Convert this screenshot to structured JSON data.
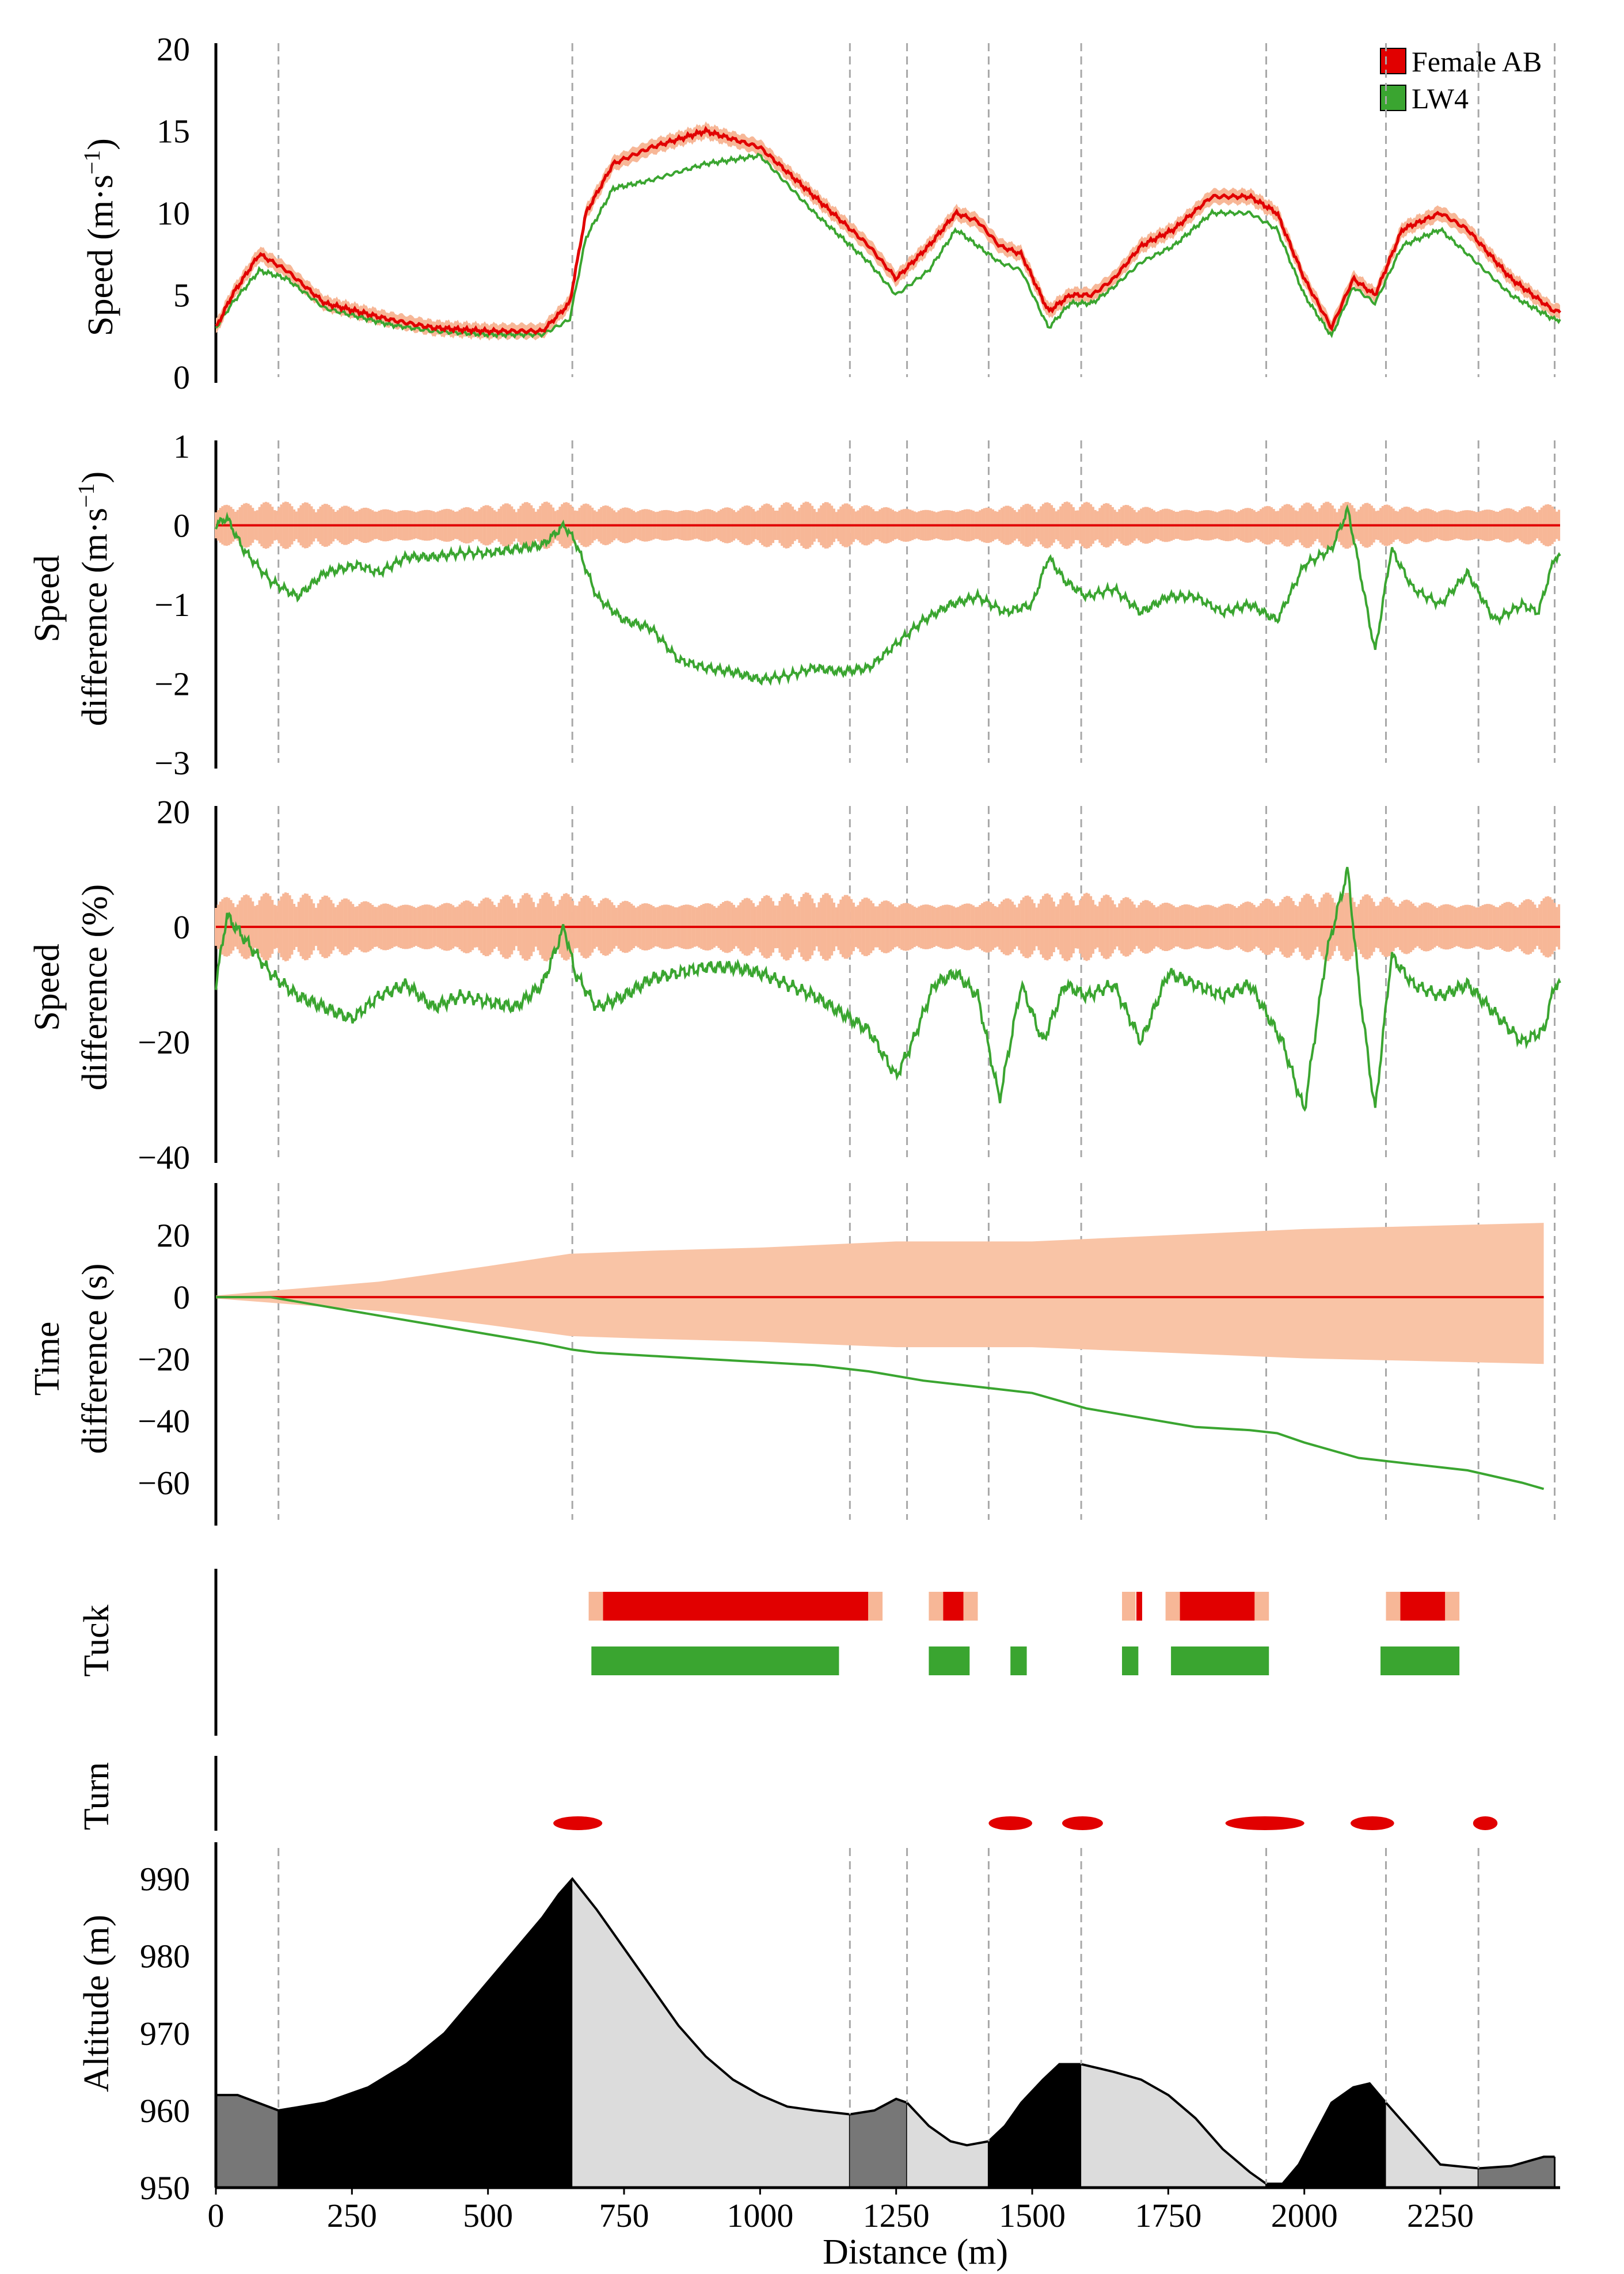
{
  "figure": {
    "xlabel": "Distance (m)",
    "xticks": [
      "0",
      "250",
      "500",
      "750",
      "1000",
      "1250",
      "1500",
      "1750",
      "2000",
      "2250"
    ],
    "legend": [
      {
        "label": "Female AB",
        "color": "#e10000"
      },
      {
        "label": "LW4",
        "color": "#3aa530"
      }
    ],
    "section_boundaries_m": [
      115,
      655,
      1165,
      1270,
      1420,
      1590,
      1930,
      2150,
      2320,
      2460
    ]
  },
  "chart_data": [
    {
      "type": "line",
      "id": "speed",
      "ylabel_lines": [
        "Speed (m·s",
        "−1",
        ")"
      ],
      "yticks": [
        "0",
        "5",
        "10",
        "15",
        "20"
      ],
      "ylim": [
        0,
        20
      ],
      "xlim": [
        0,
        2470
      ],
      "series": [
        {
          "name": "Female AB",
          "color": "#e10000",
          "band_color": "#f7b797",
          "x": [
            0,
            30,
            80,
            130,
            200,
            260,
            320,
            400,
            500,
            600,
            650,
            680,
            730,
            800,
            900,
            1000,
            1100,
            1200,
            1250,
            1310,
            1360,
            1400,
            1440,
            1480,
            1530,
            1570,
            1610,
            1650,
            1700,
            1760,
            1830,
            1900,
            1950,
            2000,
            2050,
            2090,
            2130,
            2180,
            2250,
            2300,
            2380,
            2460
          ],
          "y": [
            3,
            5,
            7.5,
            6.5,
            4.5,
            4,
            3.5,
            3,
            2.8,
            2.8,
            4.5,
            10,
            13,
            14,
            15,
            14,
            11,
            8,
            6,
            8,
            10,
            9.5,
            8,
            7.5,
            4,
            5,
            5,
            6,
            8,
            9,
            11,
            11,
            10,
            6,
            3,
            6,
            5,
            9,
            10,
            9,
            6,
            4
          ]
        },
        {
          "name": "LW4",
          "color": "#3aa530",
          "x": [
            0,
            30,
            80,
            130,
            200,
            260,
            320,
            400,
            500,
            600,
            650,
            680,
            730,
            800,
            900,
            1000,
            1100,
            1200,
            1250,
            1310,
            1360,
            1400,
            1440,
            1480,
            1530,
            1570,
            1610,
            1650,
            1700,
            1760,
            1830,
            1900,
            1950,
            2000,
            2050,
            2090,
            2130,
            2180,
            2250,
            2300,
            2380,
            2460
          ],
          "y": [
            3,
            4.5,
            6.5,
            6,
            4.2,
            3.7,
            3.2,
            2.8,
            2.6,
            2.6,
            3.5,
            8.5,
            11.5,
            12,
            13,
            13.5,
            10,
            7,
            5,
            6.5,
            9,
            8,
            7,
            6.5,
            3,
            4.5,
            4.5,
            5.5,
            7,
            8,
            10,
            10,
            9,
            5,
            2.5,
            5.5,
            4.5,
            8,
            9,
            7.5,
            5,
            3.5
          ]
        }
      ]
    },
    {
      "type": "line",
      "id": "speed_diff",
      "ylabel_lines": [
        "Speed",
        "difference (m·s",
        "−1",
        ")"
      ],
      "yticks": [
        "1",
        "0",
        "−1",
        "−2",
        "−3"
      ],
      "ylim": [
        -3,
        1
      ],
      "xlim": [
        0,
        2470
      ],
      "series": [
        {
          "name": "Female AB",
          "color": "#e10000",
          "band_halfwidth": 0.3,
          "x": [
            0,
            2470
          ],
          "y": [
            0,
            0
          ]
        },
        {
          "name": "LW4",
          "color": "#3aa530",
          "x": [
            0,
            20,
            50,
            100,
            150,
            200,
            260,
            300,
            350,
            400,
            450,
            500,
            550,
            600,
            640,
            660,
            700,
            750,
            800,
            850,
            900,
            950,
            1000,
            1050,
            1100,
            1150,
            1200,
            1250,
            1300,
            1350,
            1400,
            1450,
            1500,
            1530,
            1560,
            1600,
            1650,
            1700,
            1750,
            1800,
            1850,
            1900,
            1950,
            2000,
            2050,
            2080,
            2100,
            2130,
            2160,
            2200,
            2250,
            2300,
            2350,
            2400,
            2430,
            2460
          ],
          "y": [
            0,
            0.1,
            -0.3,
            -0.7,
            -0.9,
            -0.6,
            -0.5,
            -0.6,
            -0.4,
            -0.4,
            -0.35,
            -0.35,
            -0.3,
            -0.25,
            0,
            -0.2,
            -0.9,
            -1.2,
            -1.3,
            -1.7,
            -1.8,
            -1.85,
            -1.95,
            -1.9,
            -1.8,
            -1.85,
            -1.8,
            -1.5,
            -1.2,
            -1.0,
            -0.9,
            -1.1,
            -1.0,
            -0.4,
            -0.7,
            -0.9,
            -0.8,
            -1.1,
            -0.9,
            -0.9,
            -1.1,
            -1.0,
            -1.2,
            -0.5,
            -0.3,
            0.2,
            -0.5,
            -1.6,
            -0.3,
            -0.8,
            -1.0,
            -0.6,
            -1.2,
            -1.0,
            -1.1,
            -0.4
          ]
        }
      ]
    },
    {
      "type": "line",
      "id": "speed_diff_pct",
      "ylabel_lines": [
        "Speed",
        "difference (%)"
      ],
      "yticks": [
        "20",
        "0",
        "−20",
        "−40"
      ],
      "ylim": [
        -40,
        20
      ],
      "xlim": [
        0,
        2470
      ],
      "series": [
        {
          "name": "Female AB",
          "color": "#e10000",
          "band_halfwidth": 6,
          "x": [
            0,
            2470
          ],
          "y": [
            0,
            0
          ]
        },
        {
          "name": "LW4",
          "color": "#3aa530",
          "x": [
            0,
            20,
            60,
            100,
            150,
            200,
            250,
            300,
            350,
            400,
            450,
            500,
            550,
            600,
            640,
            660,
            700,
            750,
            800,
            850,
            900,
            950,
            1000,
            1050,
            1100,
            1150,
            1200,
            1250,
            1280,
            1320,
            1360,
            1400,
            1440,
            1480,
            1520,
            1560,
            1600,
            1650,
            1700,
            1750,
            1800,
            1850,
            1900,
            1960,
            2000,
            2040,
            2080,
            2100,
            2130,
            2160,
            2200,
            2250,
            2300,
            2350,
            2400,
            2440,
            2460
          ],
          "y": [
            -10,
            2,
            -3,
            -8,
            -12,
            -14,
            -16,
            -12,
            -10,
            -14,
            -12,
            -13,
            -14,
            -10,
            0,
            -8,
            -14,
            -12,
            -9,
            -8,
            -7,
            -7,
            -8,
            -10,
            -12,
            -15,
            -18,
            -26,
            -20,
            -10,
            -8,
            -12,
            -30,
            -10,
            -20,
            -10,
            -12,
            -10,
            -20,
            -8,
            -10,
            -12,
            -10,
            -20,
            -32,
            -5,
            10,
            -10,
            -32,
            -5,
            -10,
            -12,
            -10,
            -15,
            -20,
            -18,
            -10
          ]
        }
      ]
    },
    {
      "type": "line",
      "id": "time_diff",
      "ylabel_lines": [
        "Time",
        "difference (s)"
      ],
      "yticks": [
        "20",
        "0",
        "−20",
        "−40",
        "−60"
      ],
      "ylim": [
        -72,
        35
      ],
      "xlim": [
        0,
        2470
      ],
      "series": [
        {
          "name": "Female AB",
          "color": "#e10000",
          "band_upper": [
            0.5,
            2,
            5,
            10,
            14,
            15,
            16,
            18,
            18,
            20,
            22,
            24
          ],
          "band_x": [
            0,
            100,
            300,
            500,
            650,
            800,
            1000,
            1250,
            1500,
            1750,
            2000,
            2440
          ],
          "x": [
            0,
            2440
          ],
          "y": [
            0,
            0
          ]
        },
        {
          "name": "LW4",
          "color": "#3aa530",
          "x": [
            0,
            100,
            200,
            300,
            400,
            500,
            600,
            655,
            700,
            800,
            900,
            1000,
            1100,
            1200,
            1300,
            1400,
            1500,
            1600,
            1700,
            1800,
            1900,
            1950,
            2000,
            2100,
            2200,
            2300,
            2400,
            2440
          ],
          "y": [
            0,
            0,
            -3,
            -6,
            -9,
            -12,
            -15,
            -17,
            -18,
            -19,
            -20,
            -21,
            -22,
            -24,
            -27,
            -29,
            -31,
            -36,
            -39,
            -42,
            -43,
            -44,
            -47,
            -52,
            -54,
            -56,
            -60,
            -62
          ]
        }
      ]
    },
    {
      "type": "bar",
      "id": "tuck",
      "ylabel": "Tuck",
      "series": [
        {
          "name": "Female AB",
          "color": "#e10000",
          "edge_color": "#f7b797",
          "segments": [
            [
              685,
              1225
            ],
            [
              1310,
              1400
            ],
            [
              1665,
              1690
            ],
            [
              1745,
              1935
            ],
            [
              2150,
              2285
            ]
          ]
        },
        {
          "name": "LW4",
          "color": "#3aa530",
          "segments": [
            [
              690,
              1145
            ],
            [
              1310,
              1385
            ],
            [
              1460,
              1490
            ],
            [
              1665,
              1695
            ],
            [
              1755,
              1935
            ],
            [
              2140,
              2285
            ]
          ]
        }
      ]
    },
    {
      "type": "scatter",
      "id": "turn",
      "ylabel": "Turn",
      "series": [
        {
          "name": "Turns",
          "color": "#e10000",
          "segments": [
            [
              620,
              710
            ],
            [
              1420,
              1500
            ],
            [
              1555,
              1630
            ],
            [
              1855,
              2000
            ],
            [
              2085,
              2165
            ],
            [
              2310,
              2355
            ]
          ]
        }
      ]
    },
    {
      "type": "area",
      "id": "altitude",
      "ylabel": "Altitude (m)",
      "yticks": [
        "950",
        "960",
        "970",
        "980",
        "990"
      ],
      "ylim": [
        950,
        994
      ],
      "xlim": [
        0,
        2470
      ],
      "x": [
        0,
        40,
        115,
        200,
        280,
        350,
        420,
        480,
        540,
        600,
        630,
        655,
        700,
        750,
        800,
        850,
        900,
        950,
        1000,
        1050,
        1100,
        1165,
        1210,
        1250,
        1270,
        1310,
        1350,
        1380,
        1420,
        1450,
        1480,
        1520,
        1550,
        1590,
        1650,
        1700,
        1750,
        1800,
        1850,
        1900,
        1930,
        1960,
        1990,
        2020,
        2050,
        2090,
        2120,
        2150,
        2200,
        2250,
        2320,
        2380,
        2440,
        2460
      ],
      "y": [
        962,
        962,
        960,
        961,
        963,
        966,
        970,
        975,
        980,
        985,
        988,
        990,
        986,
        981,
        976,
        971,
        967,
        964,
        962,
        960.5,
        960,
        959.5,
        960,
        961.5,
        961,
        958,
        956,
        955.5,
        956,
        958,
        961,
        964,
        966,
        966,
        965,
        964,
        962,
        959,
        955,
        952,
        950.5,
        950.5,
        953,
        957,
        961,
        963,
        963.5,
        961,
        957,
        953,
        952.5,
        952.8,
        954,
        954
      ],
      "segment_colors": [
        {
          "from": 0,
          "to": 115,
          "color": "#777777"
        },
        {
          "from": 115,
          "to": 655,
          "color": "#000000"
        },
        {
          "from": 655,
          "to": 1165,
          "color": "#dcdcdc"
        },
        {
          "from": 1165,
          "to": 1270,
          "color": "#777777"
        },
        {
          "from": 1270,
          "to": 1420,
          "color": "#dcdcdc"
        },
        {
          "from": 1420,
          "to": 1590,
          "color": "#000000"
        },
        {
          "from": 1590,
          "to": 1930,
          "color": "#dcdcdc"
        },
        {
          "from": 1930,
          "to": 2150,
          "color": "#000000"
        },
        {
          "from": 2150,
          "to": 2320,
          "color": "#dcdcdc"
        },
        {
          "from": 2320,
          "to": 2460,
          "color": "#777777"
        }
      ]
    }
  ]
}
